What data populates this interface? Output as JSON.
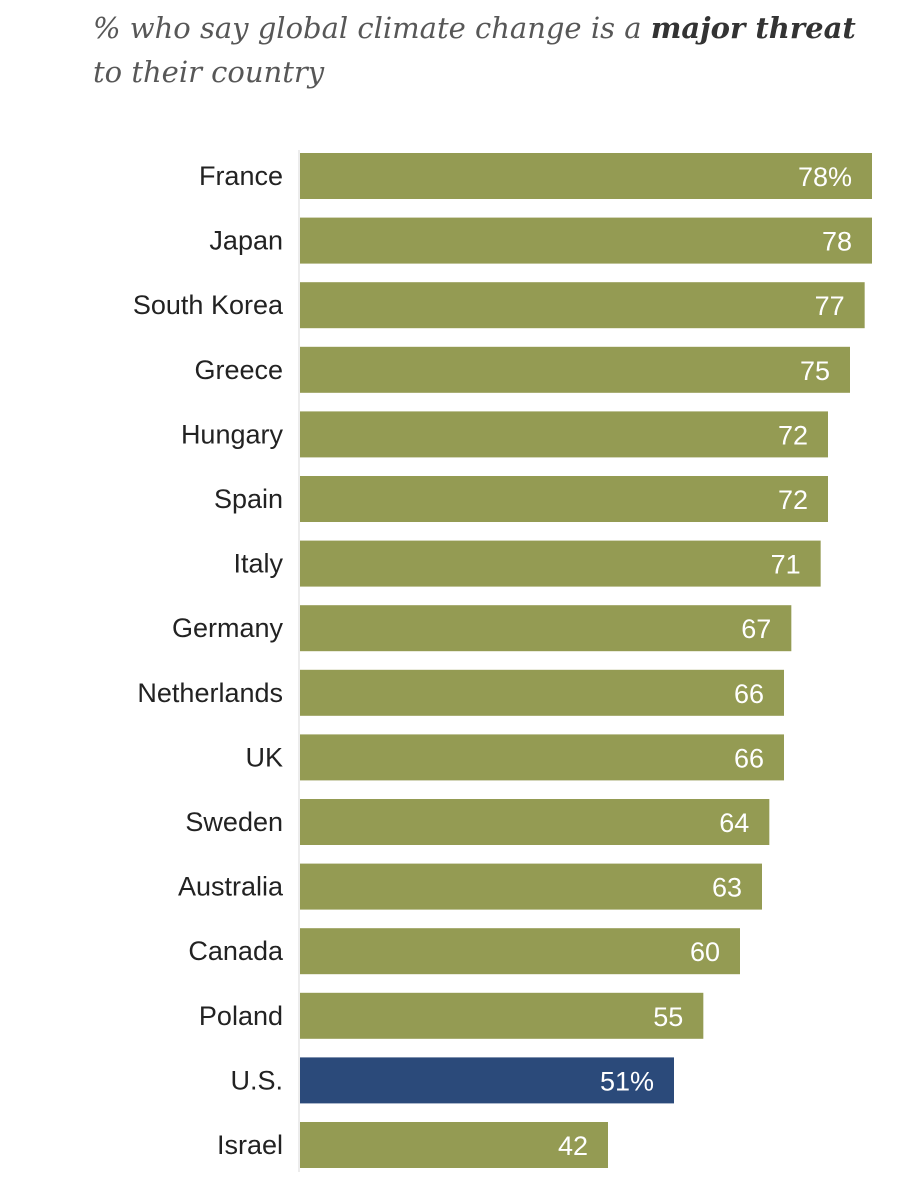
{
  "chart_data": {
    "type": "bar",
    "orientation": "horizontal",
    "title": {
      "before": "% who say global climate change is a ",
      "bold": "major threat",
      "after": " to their country"
    },
    "categories": [
      "France",
      "Japan",
      "South Korea",
      "Greece",
      "Hungary",
      "Spain",
      "Italy",
      "Germany",
      "Netherlands",
      "UK",
      "Sweden",
      "Australia",
      "Canada",
      "Poland",
      "U.S.",
      "Israel"
    ],
    "values": [
      78,
      78,
      77,
      75,
      72,
      72,
      71,
      67,
      66,
      66,
      64,
      63,
      60,
      55,
      51,
      42
    ],
    "value_labels": [
      "78%",
      "78",
      "77",
      "75",
      "72",
      "72",
      "71",
      "67",
      "66",
      "66",
      "64",
      "63",
      "60",
      "55",
      "51%",
      "42"
    ],
    "highlight_category": "U.S.",
    "colors": {
      "bar": "#949b53",
      "highlight": "#2b4a7a"
    },
    "xlim": [
      0,
      78
    ],
    "grid": false
  }
}
